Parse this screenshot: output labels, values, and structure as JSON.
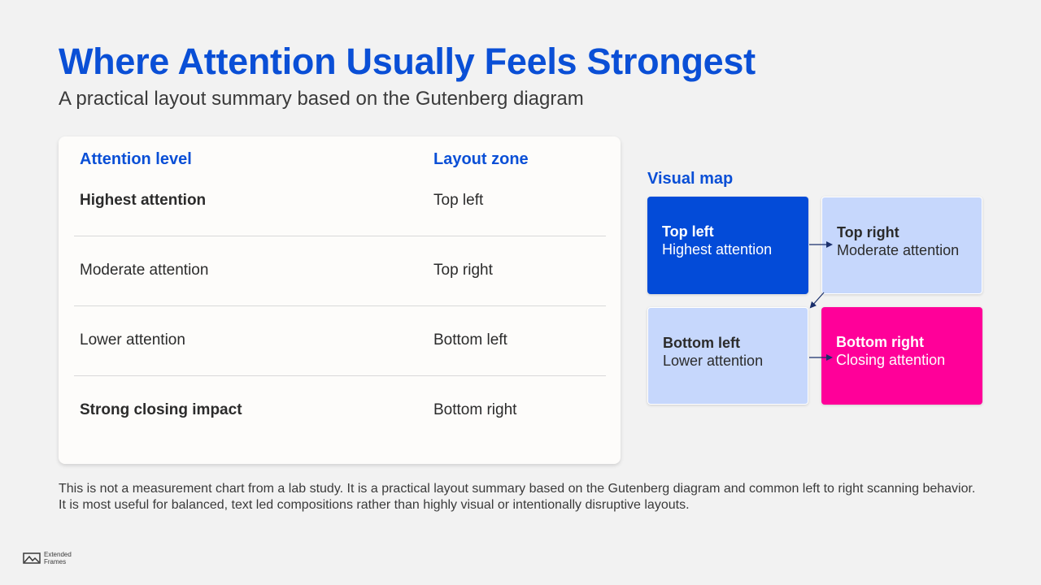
{
  "header": {
    "title": "Where Attention Usually Feels Strongest",
    "subtitle": "A practical layout summary based on the Gutenberg diagram"
  },
  "table": {
    "columns": [
      "Attention level",
      "Layout zone"
    ],
    "rows": [
      {
        "level": "Highest attention",
        "zone": "Top left",
        "level_bold": true
      },
      {
        "level": "Moderate attention",
        "zone": "Top right",
        "level_bold": false
      },
      {
        "level": "Lower attention",
        "zone": "Bottom left",
        "level_bold": false
      },
      {
        "level": "Strong closing impact",
        "zone": "Bottom right",
        "level_bold": true
      }
    ]
  },
  "visual_map": {
    "title": "Visual map",
    "quadrants": [
      {
        "name": "Top left",
        "desc": "Highest attention",
        "color": "#034bd8"
      },
      {
        "name": "Top right",
        "desc": "Moderate attention",
        "color": "#c6d7fc"
      },
      {
        "name": "Bottom left",
        "desc": "Lower attention",
        "color": "#c6d7fc"
      },
      {
        "name": "Bottom right",
        "desc": "Closing attention",
        "color": "#ff0099"
      }
    ],
    "flow": [
      "Top left",
      "Top right",
      "Bottom left",
      "Bottom right"
    ]
  },
  "note": "This is not a measurement chart from a lab study. It is a practical layout summary based on the Gutenberg diagram and common left to right scanning behavior. It is most useful for balanced, text led compositions rather than highly visual or intentionally disruptive layouts.",
  "logo": {
    "icon": "mountain-frame-icon",
    "line1": "Extended",
    "line2": "Frames"
  },
  "colors": {
    "accent": "#0a4fd6",
    "highlight": "#ff0099",
    "soft": "#c6d7fc",
    "background": "#f2f2f2"
  }
}
